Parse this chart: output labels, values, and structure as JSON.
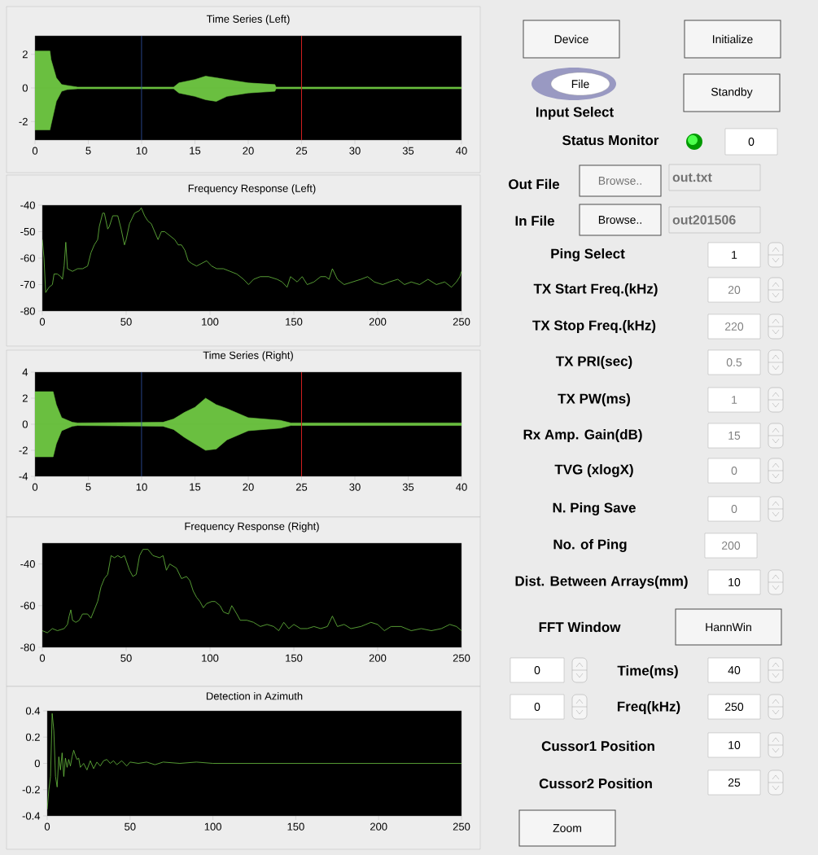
{
  "chart_data": [
    {
      "type": "area",
      "title": "Time Series (Left)",
      "xlim": [
        0,
        40
      ],
      "ylim": [
        -3.1,
        3.1
      ],
      "xticks": [
        0,
        5,
        10,
        15,
        20,
        25,
        30,
        35,
        40
      ],
      "yticks": [
        -2,
        0,
        2
      ],
      "x": [
        0,
        1.4,
        1.5,
        2,
        2.5,
        3,
        4,
        13,
        13.5,
        15,
        16,
        17,
        18,
        20,
        22.5,
        22.6,
        40
      ],
      "series": [
        {
          "color": "#6abf40",
          "values": [
            2.2,
            2.2,
            1.7,
            0.6,
            0.2,
            0.15,
            0.05,
            0.05,
            0.3,
            0.5,
            0.7,
            0.6,
            0.5,
            0.3,
            0.2,
            0.05,
            0.05
          ]
        },
        {
          "color": "#6abf40",
          "values": [
            -2.5,
            -2.5,
            -2.2,
            -0.8,
            -0.2,
            -0.1,
            -0.05,
            -0.05,
            -0.3,
            -0.5,
            -0.7,
            -0.8,
            -0.5,
            -0.3,
            -0.2,
            -0.05,
            -0.05
          ]
        }
      ],
      "ref_lines": [
        {
          "axis": "x",
          "value": 10,
          "color": "#3050a0"
        },
        {
          "axis": "x",
          "value": 25,
          "color": "#d02020"
        }
      ]
    },
    {
      "type": "line",
      "title": "Frequency Response (Left)",
      "xlim": [
        0,
        250
      ],
      "ylim": [
        -80,
        -40
      ],
      "xticks": [
        0,
        50,
        100,
        150,
        200,
        250
      ],
      "yticks": [
        -80,
        -70,
        -60,
        -50,
        -40
      ],
      "x": [
        0,
        1,
        2,
        4,
        6,
        7,
        9,
        11,
        12,
        13,
        14,
        15,
        18,
        21,
        24,
        27,
        29,
        31,
        33,
        34,
        36,
        37,
        39,
        40,
        42,
        45,
        47,
        49,
        50,
        52,
        55,
        58,
        59,
        61,
        63,
        65,
        67,
        69,
        71,
        73,
        75,
        77,
        79,
        81,
        83,
        85,
        87,
        89,
        92,
        95,
        98,
        101,
        104,
        108,
        112,
        116,
        120,
        123,
        126,
        130,
        135,
        140,
        143,
        146,
        148,
        152,
        155,
        158,
        162,
        166,
        169,
        171,
        173,
        176,
        180,
        185,
        190,
        194,
        198,
        203,
        207,
        212,
        216,
        220,
        225,
        230,
        235,
        240,
        244,
        247,
        249,
        250
      ],
      "series": [
        {
          "color": "#6abf40",
          "values": [
            -53,
            -60,
            -73,
            -71,
            -70,
            -66,
            -66,
            -67,
            -68,
            -63,
            -54,
            -64,
            -65,
            -64,
            -64,
            -63,
            -58,
            -55,
            -53,
            -48,
            -43,
            -43,
            -49,
            -48,
            -44,
            -44,
            -49,
            -55,
            -53,
            -47,
            -43,
            -42,
            -41,
            -44,
            -46,
            -47,
            -50,
            -53,
            -50,
            -50,
            -51,
            -52,
            -53,
            -55,
            -55,
            -57,
            -61,
            -62,
            -63,
            -62,
            -61,
            -63,
            -64,
            -64,
            -65,
            -66,
            -68,
            -70,
            -68,
            -67,
            -67,
            -68,
            -69,
            -71,
            -67,
            -69,
            -67,
            -70,
            -69,
            -67,
            -67,
            -68,
            -64,
            -68,
            -70,
            -69,
            -68,
            -67,
            -69,
            -70,
            -69,
            -68,
            -70,
            -69,
            -70,
            -68,
            -70,
            -69,
            -71,
            -69,
            -67,
            -65
          ]
        }
      ]
    },
    {
      "type": "area",
      "title": "Time Series (Right)",
      "xlim": [
        0,
        40
      ],
      "ylim": [
        -4,
        4
      ],
      "xticks": [
        0,
        5,
        10,
        15,
        20,
        25,
        30,
        35,
        40
      ],
      "yticks": [
        -4,
        -2,
        0,
        2,
        4
      ],
      "x": [
        0,
        1.7,
        2,
        2.5,
        3.5,
        4,
        12,
        13,
        14,
        15,
        16,
        17,
        18,
        20,
        23,
        24,
        40
      ],
      "series": [
        {
          "color": "#6abf40",
          "values": [
            2.5,
            2.5,
            1.5,
            0.5,
            0.15,
            0.1,
            0.15,
            0.4,
            0.9,
            1.3,
            2,
            1.5,
            1.2,
            0.5,
            0.3,
            0.1,
            0.1
          ]
        },
        {
          "color": "#6abf40",
          "values": [
            -2.5,
            -2.5,
            -1.5,
            -0.5,
            -0.15,
            -0.1,
            -0.15,
            -0.4,
            -1,
            -1.5,
            -2,
            -1.9,
            -1.2,
            -0.5,
            -0.3,
            -0.1,
            -0.1
          ]
        }
      ],
      "ref_lines": [
        {
          "axis": "x",
          "value": 10,
          "color": "#3050a0"
        },
        {
          "axis": "x",
          "value": 25,
          "color": "#d02020"
        }
      ]
    },
    {
      "type": "line",
      "title": "Frequency Response (Right)",
      "xlim": [
        0,
        250
      ],
      "ylim": [
        -80,
        -30
      ],
      "xticks": [
        0,
        50,
        100,
        150,
        200,
        250
      ],
      "yticks": [
        -80,
        -60,
        -40
      ],
      "x": [
        0,
        3,
        6,
        9,
        13,
        15,
        16,
        17,
        18,
        20,
        22,
        24,
        27,
        29,
        31,
        33,
        35,
        37,
        39,
        41,
        43,
        45,
        47,
        49,
        52,
        54,
        56,
        58,
        60,
        63,
        66,
        70,
        72,
        74,
        76,
        78,
        80,
        83,
        86,
        88,
        90,
        92,
        94,
        96,
        98,
        101,
        103,
        106,
        108,
        111,
        113,
        116,
        118,
        122,
        126,
        130,
        134,
        138,
        141,
        144,
        147,
        150,
        154,
        158,
        162,
        166,
        170,
        173,
        176,
        180,
        184,
        190,
        196,
        200,
        204,
        208,
        214,
        220,
        226,
        232,
        238,
        243,
        247,
        250
      ],
      "series": [
        {
          "color": "#6abf40",
          "values": [
            -72,
            -73,
            -71,
            -72,
            -71,
            -69,
            -65,
            -62,
            -67,
            -68,
            -67,
            -64,
            -64,
            -66,
            -62,
            -58,
            -51,
            -47,
            -45,
            -36,
            -37,
            -36,
            -37,
            -36,
            -43,
            -46,
            -45,
            -36,
            -33,
            -33,
            -36,
            -37,
            -36,
            -43,
            -40,
            -41,
            -42,
            -47,
            -46,
            -48,
            -53,
            -56,
            -58,
            -61,
            -59,
            -58,
            -58,
            -60,
            -63,
            -64,
            -60,
            -64,
            -67,
            -67,
            -68,
            -70,
            -69,
            -70,
            -72,
            -68,
            -71,
            -69,
            -71,
            -71,
            -70,
            -71,
            -70,
            -65,
            -70,
            -69,
            -71,
            -70,
            -68,
            -69,
            -72,
            -70,
            -70,
            -72,
            -71,
            -72,
            -71,
            -69,
            -70,
            -72
          ]
        }
      ]
    },
    {
      "type": "line",
      "title": "Detection in Azimuth",
      "xlim": [
        0,
        250
      ],
      "ylim": [
        -0.4,
        0.4
      ],
      "xticks": [
        0,
        50,
        100,
        150,
        200,
        250
      ],
      "yticks": [
        -0.4,
        -0.2,
        0,
        0.2,
        0.4
      ],
      "x": [
        0,
        1,
        2,
        3,
        4,
        5,
        6,
        7,
        8,
        9,
        10,
        11,
        12,
        13,
        14,
        15,
        16,
        17,
        18,
        19,
        20,
        22,
        24,
        26,
        28,
        30,
        32,
        34,
        36,
        38,
        40,
        42,
        45,
        48,
        50,
        55,
        60,
        65,
        70,
        80,
        90,
        100,
        120,
        150,
        200,
        250
      ],
      "series": [
        {
          "color": "#6abf40",
          "values": [
            -0.35,
            -0.2,
            -0.1,
            0.38,
            0.25,
            -0.1,
            -0.18,
            0.05,
            -0.05,
            0.08,
            -0.1,
            0.04,
            -0.03,
            0.03,
            -0.02,
            0.05,
            0.1,
            0.06,
            0.03,
            0.04,
            -0.03,
            0,
            -0.05,
            0.02,
            -0.04,
            0.01,
            -0.02,
            0.02,
            0.03,
            0,
            0.02,
            -0.01,
            0.02,
            -0.02,
            0.01,
            0,
            0.01,
            -0.01,
            0.01,
            0,
            0.01,
            0,
            0,
            0,
            0,
            0
          ]
        }
      ]
    },
    {
      "type": "other",
      "annotations": [
        "Device",
        "Initialize",
        "File",
        "Standby",
        "Input Select",
        "Status Monitor",
        "0",
        "Out File",
        "Browse..",
        "out.txt",
        "In File",
        "Browse..",
        "out201506",
        "Ping Select",
        "1",
        "TX Start Freq.(kHz)",
        "20",
        "TX Stop Freq.(kHz)",
        "220",
        "TX PRI(sec)",
        "0.5",
        "TX PW(ms)",
        "1",
        "Rx Amp. Gain(dB)",
        "15",
        "TVG (xlogX)",
        "0",
        "N. Ping Save",
        "0",
        "No. of Ping",
        "200",
        "Dist. Between Arrays(mm)",
        "10",
        "FFT Window",
        "HannWin",
        "0",
        "Time(ms)",
        "40",
        "0",
        "Freq(kHz)",
        "250",
        "Cussor1 Position",
        "10",
        "Cussor2 Position",
        "25",
        "Zoom"
      ]
    }
  ]
}
